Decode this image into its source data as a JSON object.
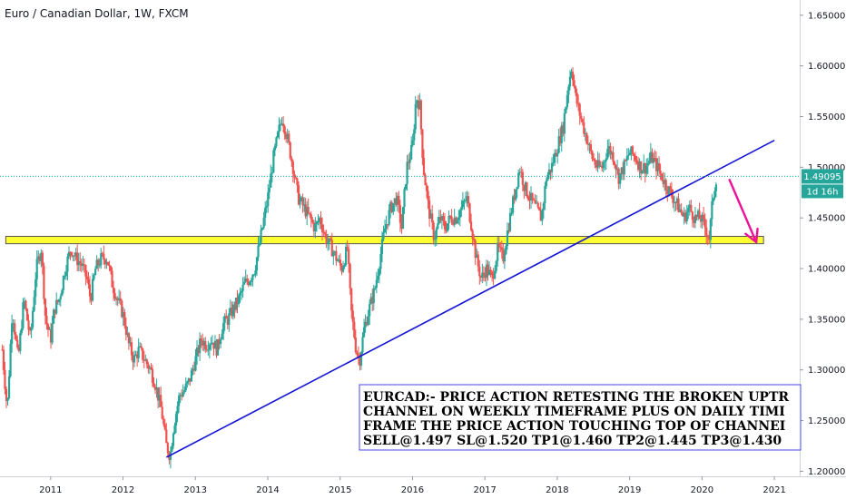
{
  "chart_data": {
    "type": "candlestick",
    "title": "Euro / Canadian Dollar, 1W, FXCM",
    "price_tag": "1.49095",
    "time_tag": "1d 16h",
    "y_ticks": [
      "1.65000",
      "1.60000",
      "1.55000",
      "1.50000",
      "1.45000",
      "1.40000",
      "1.35000",
      "1.30000",
      "1.25000",
      "1.20000"
    ],
    "x_ticks": [
      "2011",
      "2012",
      "2013",
      "2014",
      "2015",
      "2016",
      "2017",
      "2018",
      "2019",
      "2020",
      "2021"
    ],
    "ylim": [
      1.195,
      1.665
    ],
    "xlim": [
      2010.3,
      2021.35
    ],
    "current_price": 1.49095,
    "support_zone": {
      "x0": 2010.38,
      "x1": 2020.85,
      "y_low": 1.4245,
      "y_high": 1.4318
    },
    "trendline": {
      "x0": 2012.6,
      "y0": 1.2138,
      "x1": 2021.0,
      "y1": 1.5265
    },
    "projection_arrow": {
      "x0": 2020.38,
      "y0": 1.4875,
      "x1": 2020.75,
      "y1": 1.426
    },
    "colors": {
      "up": "#26a69a",
      "down": "#ef5350",
      "zone": "#ffff33",
      "trend": "#1515d6",
      "arrow": "#ee1199",
      "price_line": "#26a69a"
    },
    "price_path": [
      [
        2010.33,
        1.32
      ],
      [
        2010.4,
        1.26
      ],
      [
        2010.47,
        1.36
      ],
      [
        2010.55,
        1.31
      ],
      [
        2010.63,
        1.37
      ],
      [
        2010.72,
        1.33
      ],
      [
        2010.8,
        1.4
      ],
      [
        2010.87,
        1.42
      ],
      [
        2010.93,
        1.35
      ],
      [
        2011.0,
        1.33
      ],
      [
        2011.05,
        1.36
      ],
      [
        2011.12,
        1.37
      ],
      [
        2011.2,
        1.4
      ],
      [
        2011.28,
        1.42
      ],
      [
        2011.35,
        1.41
      ],
      [
        2011.42,
        1.405
      ],
      [
        2011.5,
        1.39
      ],
      [
        2011.55,
        1.37
      ],
      [
        2011.62,
        1.4
      ],
      [
        2011.7,
        1.41
      ],
      [
        2011.78,
        1.41
      ],
      [
        2011.85,
        1.385
      ],
      [
        2011.92,
        1.37
      ],
      [
        2012.0,
        1.355
      ],
      [
        2012.08,
        1.325
      ],
      [
        2012.15,
        1.31
      ],
      [
        2012.22,
        1.32
      ],
      [
        2012.3,
        1.31
      ],
      [
        2012.38,
        1.3
      ],
      [
        2012.45,
        1.285
      ],
      [
        2012.53,
        1.26
      ],
      [
        2012.6,
        1.225
      ],
      [
        2012.65,
        1.215
      ],
      [
        2012.7,
        1.245
      ],
      [
        2012.78,
        1.275
      ],
      [
        2012.85,
        1.28
      ],
      [
        2012.92,
        1.29
      ],
      [
        2013.0,
        1.31
      ],
      [
        2013.08,
        1.33
      ],
      [
        2013.15,
        1.325
      ],
      [
        2013.22,
        1.33
      ],
      [
        2013.3,
        1.32
      ],
      [
        2013.38,
        1.345
      ],
      [
        2013.45,
        1.35
      ],
      [
        2013.52,
        1.36
      ],
      [
        2013.6,
        1.37
      ],
      [
        2013.68,
        1.385
      ],
      [
        2013.75,
        1.39
      ],
      [
        2013.82,
        1.4
      ],
      [
        2013.9,
        1.43
      ],
      [
        2014.0,
        1.47
      ],
      [
        2014.08,
        1.51
      ],
      [
        2014.15,
        1.535
      ],
      [
        2014.2,
        1.55
      ],
      [
        2014.28,
        1.525
      ],
      [
        2014.35,
        1.5
      ],
      [
        2014.42,
        1.47
      ],
      [
        2014.5,
        1.46
      ],
      [
        2014.58,
        1.45
      ],
      [
        2014.65,
        1.44
      ],
      [
        2014.72,
        1.45
      ],
      [
        2014.8,
        1.43
      ],
      [
        2014.88,
        1.42
      ],
      [
        2014.95,
        1.41
      ],
      [
        2015.02,
        1.4
      ],
      [
        2015.1,
        1.42
      ],
      [
        2015.15,
        1.36
      ],
      [
        2015.22,
        1.32
      ],
      [
        2015.27,
        1.31
      ],
      [
        2015.33,
        1.34
      ],
      [
        2015.4,
        1.36
      ],
      [
        2015.48,
        1.38
      ],
      [
        2015.55,
        1.41
      ],
      [
        2015.62,
        1.44
      ],
      [
        2015.7,
        1.46
      ],
      [
        2015.78,
        1.47
      ],
      [
        2015.85,
        1.44
      ],
      [
        2015.92,
        1.5
      ],
      [
        2016.0,
        1.52
      ],
      [
        2016.05,
        1.57
      ],
      [
        2016.1,
        1.56
      ],
      [
        2016.15,
        1.5
      ],
      [
        2016.22,
        1.46
      ],
      [
        2016.3,
        1.43
      ],
      [
        2016.38,
        1.45
      ],
      [
        2016.45,
        1.44
      ],
      [
        2016.52,
        1.45
      ],
      [
        2016.6,
        1.45
      ],
      [
        2016.68,
        1.46
      ],
      [
        2016.75,
        1.47
      ],
      [
        2016.82,
        1.44
      ],
      [
        2016.88,
        1.41
      ],
      [
        2016.95,
        1.39
      ],
      [
        2017.02,
        1.4
      ],
      [
        2017.1,
        1.39
      ],
      [
        2017.18,
        1.42
      ],
      [
        2017.25,
        1.41
      ],
      [
        2017.32,
        1.44
      ],
      [
        2017.4,
        1.47
      ],
      [
        2017.48,
        1.5
      ],
      [
        2017.55,
        1.48
      ],
      [
        2017.62,
        1.47
      ],
      [
        2017.7,
        1.46
      ],
      [
        2017.78,
        1.45
      ],
      [
        2017.85,
        1.49
      ],
      [
        2017.92,
        1.5
      ],
      [
        2018.0,
        1.52
      ],
      [
        2018.08,
        1.54
      ],
      [
        2018.15,
        1.58
      ],
      [
        2018.2,
        1.6
      ],
      [
        2018.25,
        1.57
      ],
      [
        2018.32,
        1.55
      ],
      [
        2018.4,
        1.53
      ],
      [
        2018.48,
        1.51
      ],
      [
        2018.55,
        1.5
      ],
      [
        2018.62,
        1.5
      ],
      [
        2018.7,
        1.52
      ],
      [
        2018.78,
        1.51
      ],
      [
        2018.85,
        1.49
      ],
      [
        2018.92,
        1.5
      ],
      [
        2019.0,
        1.515
      ],
      [
        2019.08,
        1.51
      ],
      [
        2019.15,
        1.5
      ],
      [
        2019.22,
        1.5
      ],
      [
        2019.3,
        1.51
      ],
      [
        2019.38,
        1.5
      ],
      [
        2019.45,
        1.49
      ],
      [
        2019.52,
        1.48
      ],
      [
        2019.6,
        1.47
      ],
      [
        2019.68,
        1.46
      ],
      [
        2019.75,
        1.45
      ],
      [
        2019.82,
        1.46
      ],
      [
        2019.9,
        1.45
      ],
      [
        2019.98,
        1.45
      ],
      [
        2020.05,
        1.44
      ],
      [
        2020.1,
        1.43
      ],
      [
        2020.15,
        1.47
      ],
      [
        2020.2,
        1.49095
      ]
    ],
    "annotation": [
      "EURCAD:- PRICE ACTION RETESTING THE BROKEN UPTR",
      "CHANNEL ON WEEKLY TIMEFRAME PLUS ON DAILY TIMI",
      "FRAME THE PRICE ACTION TOUCHING TOP OF CHANNEI",
      "SELL@1.497 SL@1.520 TP1@1.460 TP2@1.445 TP3@1.430"
    ]
  }
}
